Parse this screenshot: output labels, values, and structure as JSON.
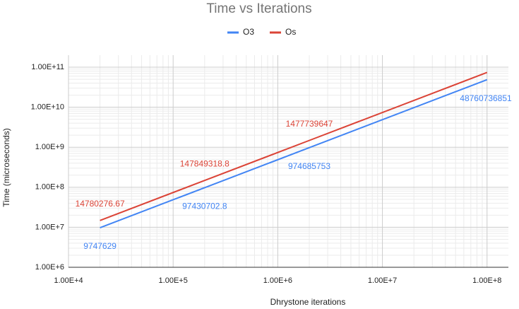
{
  "chart_data": {
    "type": "line",
    "title": "Time vs Iterations",
    "x_label": "Dhrystone iterations",
    "y_label": "Time (microseconds)",
    "x": [
      20000,
      200000,
      2000000,
      100000000
    ],
    "series": [
      {
        "name": "O3",
        "color": "#4285f4",
        "values": [
          9747629,
          97430702.8,
          974685753,
          48760736851
        ],
        "show_labels": [
          true,
          true,
          true,
          true
        ]
      },
      {
        "name": "Os",
        "color": "#db4437",
        "values": [
          14780276.67,
          147849318.8,
          1477739647,
          73900000000
        ],
        "show_labels": [
          true,
          true,
          true,
          false
        ]
      }
    ],
    "x_log": true,
    "y_log": true,
    "xlim": [
      10000,
      160000000
    ],
    "ylim": [
      1000000,
      200000000000
    ],
    "xticks": [
      {
        "value": 10000,
        "label": "1.00E+4"
      },
      {
        "value": 100000,
        "label": "1.00E+5"
      },
      {
        "value": 1000000,
        "label": "1.00E+6"
      },
      {
        "value": 10000000,
        "label": "1.00E+7"
      },
      {
        "value": 100000000,
        "label": "1.00E+8"
      }
    ],
    "yticks": [
      {
        "value": 1000000,
        "label": "1.00E+6"
      },
      {
        "value": 10000000,
        "label": "1.00E+7"
      },
      {
        "value": 100000000,
        "label": "1.00E+8"
      },
      {
        "value": 1000000000,
        "label": "1.00E+9"
      },
      {
        "value": 10000000000,
        "label": "1.00E+10"
      },
      {
        "value": 100000000000,
        "label": "1.00E+11"
      }
    ],
    "grid": true,
    "minor_grid": true,
    "legend": "top"
  }
}
